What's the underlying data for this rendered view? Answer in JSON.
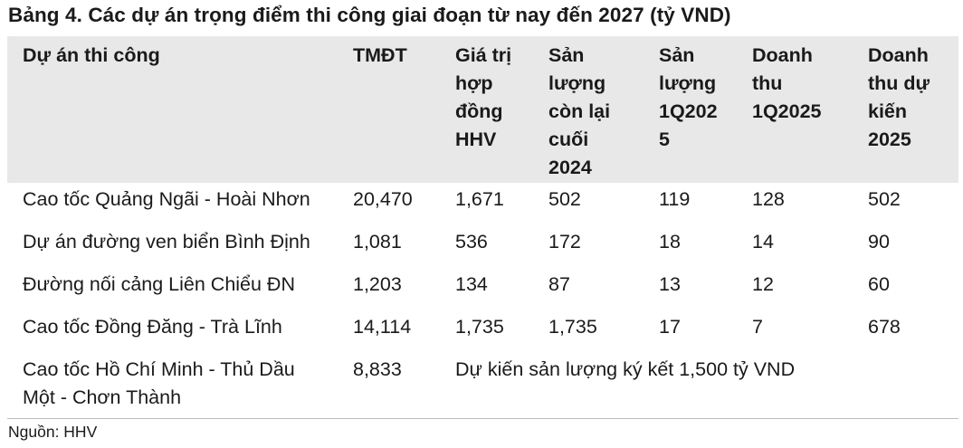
{
  "title": "Bảng 4. Các dự án trọng điểm thi công giai đoạn từ nay đến 2027 (tỷ VND)",
  "columns": [
    "Dự án thi công",
    "TMĐT",
    "Giá trị\nhợp\nđồng\nHHV",
    "Sản\nlượng\ncòn lại\ncuối\n2024",
    "Sản\nlượng\n1Q202\n5",
    "Doanh\nthu\n1Q2025",
    "Doanh\nthu dự\nkiến\n2025"
  ],
  "rows": [
    [
      "Cao tốc Quảng Ngãi - Hoài Nhơn",
      "20,470",
      "1,671",
      "502",
      "119",
      "128",
      "502"
    ],
    [
      "Dự án đường ven biển Bình Định",
      "1,081",
      "536",
      "172",
      "18",
      "14",
      "90"
    ],
    [
      "Đường nối cảng Liên Chiểu ĐN",
      "1,203",
      "134",
      "87",
      "13",
      "12",
      "60"
    ],
    [
      "Cao tốc Đồng Đăng - Trà Lĩnh",
      "14,114",
      "1,735",
      "1,735",
      "17",
      "7",
      "678"
    ]
  ],
  "last_row": {
    "project_line1": "Cao tốc Hồ Chí Minh - Thủ Dầu",
    "project_line2": "Một - Chơn Thành",
    "tmdt": "8,833",
    "note": "Dự kiến sản lượng ký kết 1,500 tỷ VND"
  },
  "source": "Nguồn: HHV"
}
